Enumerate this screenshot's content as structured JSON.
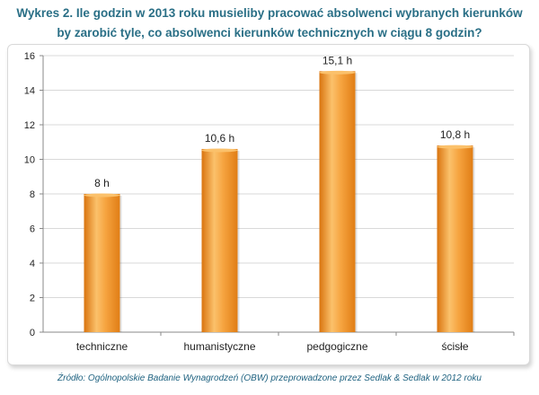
{
  "title_line1": "Wykres 2. Ile godzin w 2013 roku musieliby pracować absolwenci wybranych kierunków",
  "title_line2": "by zarobić tyle, co absolwenci kierunków technicznych w ciągu 8 godzin?",
  "source": "Źródło: Ogólnopolskie Badanie Wynagrodzeń (OBW) przeprowadzone przez Sedlak & Sedlak w 2012 roku",
  "chart_data": {
    "type": "bar",
    "title": "Wykres 2. Ile godzin w 2013 roku musieliby pracować absolwenci wybranych kierunków by zarobić tyle, co absolwenci kierunków technicznych w ciągu 8 godzin?",
    "categories": [
      "techniczne",
      "humanistyczne",
      "pedgogiczne",
      "ścisłe"
    ],
    "values": [
      8,
      10.6,
      15.1,
      10.8
    ],
    "data_labels": [
      "8 h",
      "10,6 h",
      "15,1 h",
      "10,8 h"
    ],
    "xlabel": "",
    "ylabel": "",
    "ylim": [
      0,
      16
    ],
    "yticks": [
      0,
      2,
      4,
      6,
      8,
      10,
      12,
      14,
      16
    ],
    "grid": true,
    "colors": {
      "bar_light": "#fbc16b",
      "bar_mid": "#f49a33",
      "bar_dark": "#d9740f",
      "grid": "#d9d9d9",
      "title": "#2a6f86",
      "source": "#1f6280"
    }
  }
}
